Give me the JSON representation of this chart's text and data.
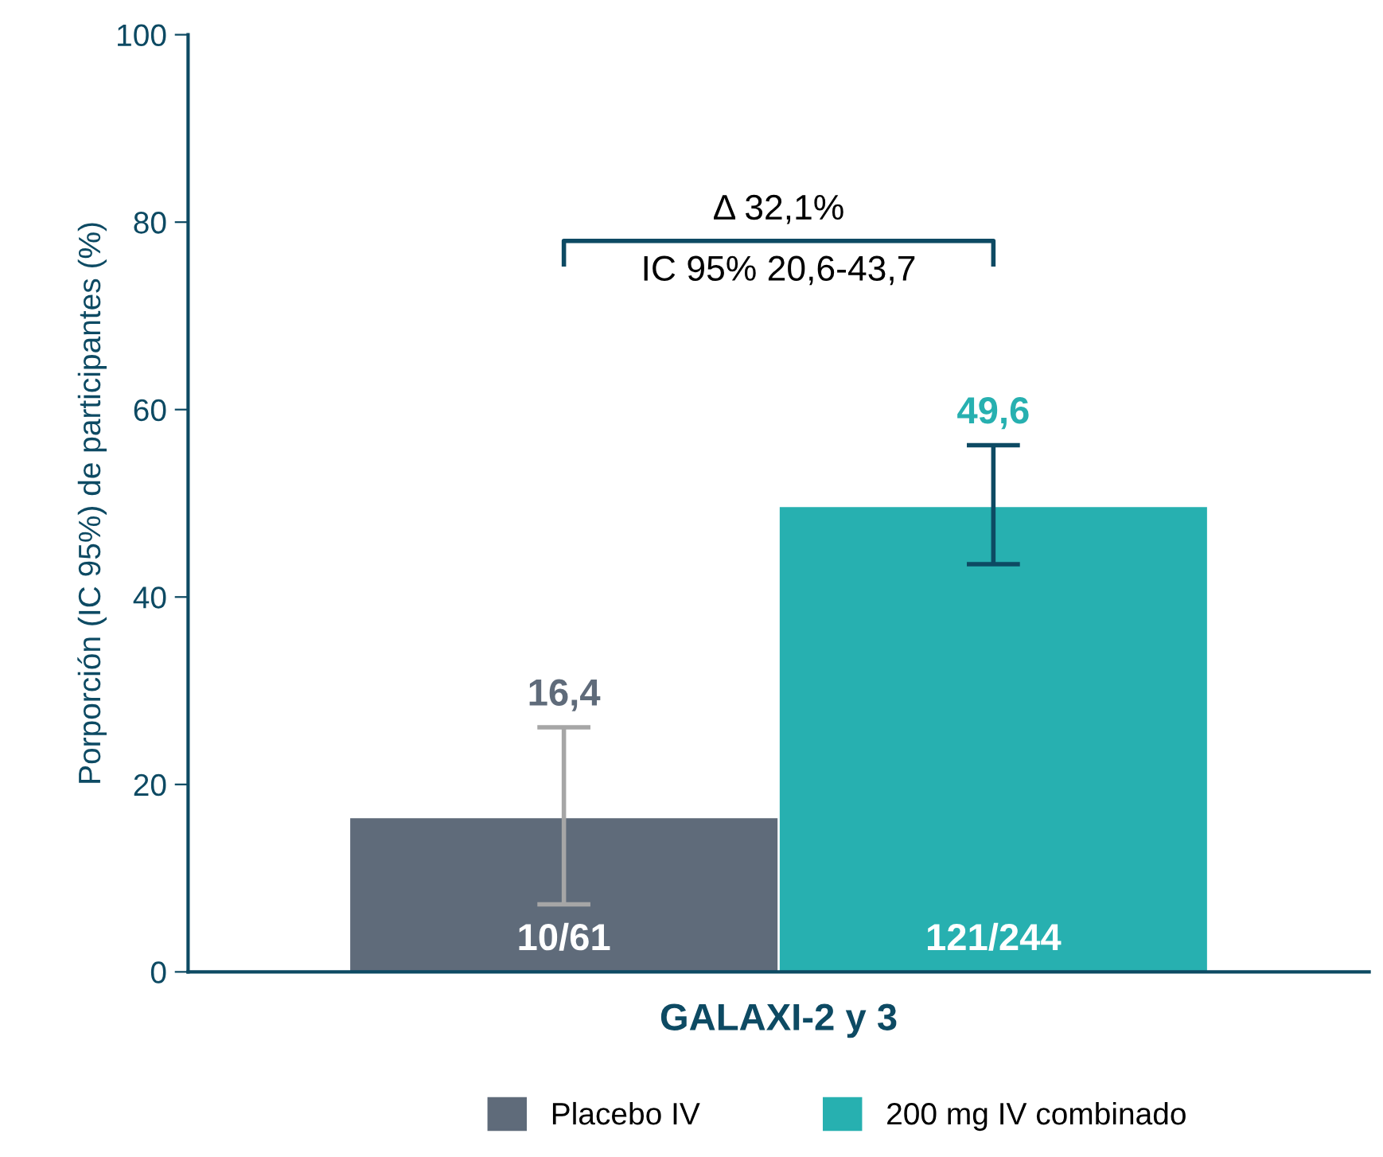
{
  "chart_data": {
    "type": "bar",
    "categories": [
      "GALAXI-2 y 3"
    ],
    "ylabel": "Porporción (IC 95%) de participantes (%)",
    "series": [
      {
        "name": "Placebo IV",
        "color": "#5f6b7a",
        "values": [
          16.4
        ],
        "errors": [
          [
            7.2,
            26.1
          ]
        ],
        "value_labels": [
          "16,4"
        ]
      },
      {
        "name": "200 mg IV combinado",
        "color": "#27b0b0",
        "values": [
          49.6
        ],
        "errors": [
          [
            43.5,
            56.2
          ]
        ],
        "value_labels": [
          "49,6"
        ]
      }
    ],
    "annotations": [
      "10/61",
      "121/244",
      "Δ 32,1%",
      "IC 95% 20,6-43,7"
    ],
    "ylim": [
      0,
      100
    ],
    "yticks": [
      0,
      20,
      40,
      60,
      80,
      100
    ],
    "grid": false,
    "legend": "bottom"
  }
}
